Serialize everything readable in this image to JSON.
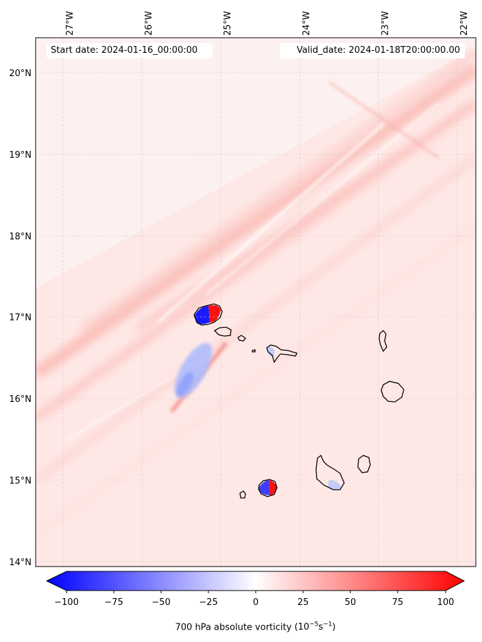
{
  "map": {
    "start_label": "Start date: 2024-01-16_00:00:00",
    "valid_label": "Valid_date: 2024-01-18T20:00:00.00",
    "lon_ticks": [
      "27°W",
      "26°W",
      "25°W",
      "24°W",
      "23°W",
      "22°W"
    ],
    "lat_ticks": [
      "20°N",
      "19°N",
      "18°N",
      "17°N",
      "16°N",
      "15°N",
      "14°N"
    ],
    "lon_values": [
      -27,
      -26,
      -25,
      -24,
      -23,
      -22
    ],
    "lat_values": [
      20,
      19,
      18,
      17,
      16,
      15,
      14
    ],
    "lon_range": [
      -27.25,
      -21.8
    ],
    "lat_range": [
      13.95,
      20.45
    ],
    "field": "700 hPa absolute vorticity",
    "islands": [
      "Santo Antão",
      "São Vicente",
      "Santa Luzia",
      "São Nicolau",
      "Sal",
      "Boa Vista",
      "Maio",
      "Santiago",
      "Fogo",
      "Brava"
    ]
  },
  "colorbar": {
    "title_text": "700 hPa absolute vorticity ",
    "unit_base": "(10",
    "unit_exp1": "−5",
    "unit_mid": "s",
    "unit_exp2": "−1",
    "unit_close": ")",
    "ticks": [
      "−100",
      "−75",
      "−50",
      "−25",
      "0",
      "25",
      "50",
      "75",
      "100"
    ],
    "tick_values": [
      -100,
      -75,
      -50,
      -25,
      0,
      25,
      50,
      75,
      100
    ],
    "range": [
      -100,
      100
    ],
    "colors": {
      "negative": "#0000ff",
      "zero": "#ffffff",
      "positive": "#ff0000"
    }
  }
}
